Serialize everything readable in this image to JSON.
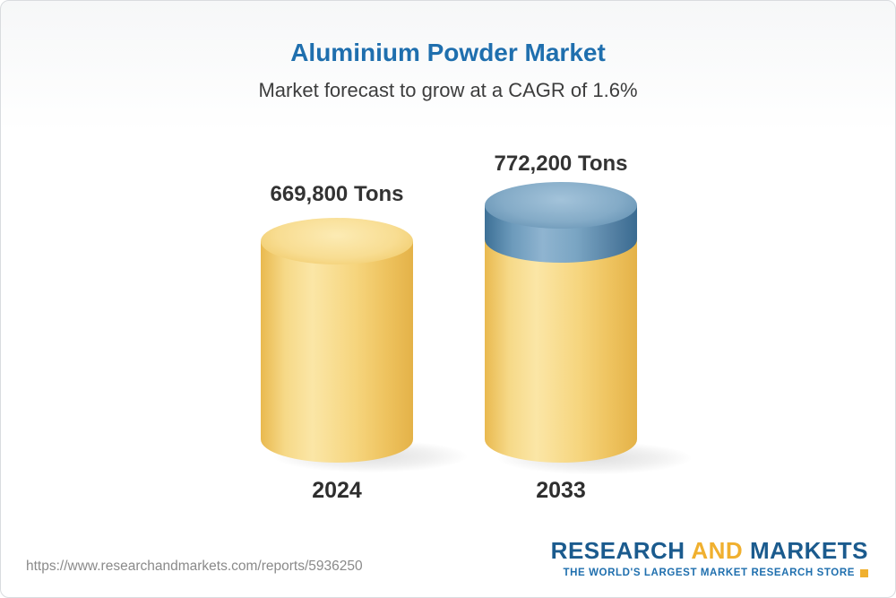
{
  "header": {
    "title": "Aluminium Powder Market",
    "subtitle": "Market forecast to grow at a CAGR of 1.6%"
  },
  "chart_data": {
    "type": "bar",
    "title": "Aluminium Powder Market",
    "subtitle": "Market forecast to grow at a CAGR of 1.6%",
    "categories": [
      "2024",
      "2033"
    ],
    "values": [
      669800,
      772200
    ],
    "value_labels": [
      "669,800 Tons",
      "772,200 Tons"
    ],
    "unit": "Tons",
    "cagr": "1.6%",
    "legend_position": "none",
    "grid": false,
    "colors": {
      "base_segment": "#F5CE6E",
      "growth_segment": "#6693B4",
      "title": "#1F6FAE"
    }
  },
  "footer": {
    "url": "https://www.researchandmarkets.com/reports/5936250",
    "logo": {
      "research": "RESEARCH",
      "and": "AND",
      "markets": "MARKETS",
      "tagline": "THE WORLD'S LARGEST MARKET RESEARCH STORE"
    }
  }
}
